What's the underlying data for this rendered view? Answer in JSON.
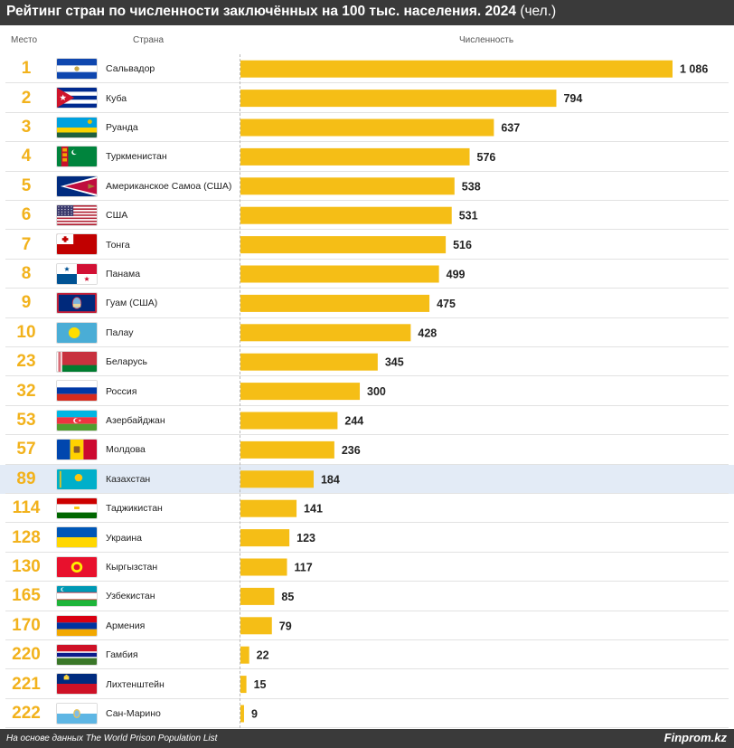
{
  "header": {
    "title": "Рейтинг стран по численности заключённых на 100 тыс. населения. 2024",
    "unit": "(чел.)"
  },
  "columns": {
    "place": "Место",
    "country": "Страна",
    "value": "Численность"
  },
  "colors": {
    "bar": "#f5be16",
    "place": "#f2b21c",
    "highlight": "#e3ebf6",
    "header_bg": "#3a3a3a"
  },
  "rows": [
    {
      "place": "1",
      "country": "Сальвадор",
      "flag": "salvador-flag"
    },
    {
      "place": "2",
      "country": "Куба",
      "flag": "cuba-flag"
    },
    {
      "place": "3",
      "country": "Руанда",
      "flag": "rwanda-flag"
    },
    {
      "place": "4",
      "country": "Туркменистан",
      "flag": "turkmenistan-flag"
    },
    {
      "place": "5",
      "country": "Американское Самоа (США)",
      "flag": "american-samoa-flag"
    },
    {
      "place": "6",
      "country": "США",
      "flag": "usa-flag"
    },
    {
      "place": "7",
      "country": "Тонга",
      "flag": "tonga-flag"
    },
    {
      "place": "8",
      "country": "Панама",
      "flag": "panama-flag"
    },
    {
      "place": "9",
      "country": "Гуам (США)",
      "flag": "guam-flag"
    },
    {
      "place": "10",
      "country": "Палау",
      "flag": "palau-flag"
    },
    {
      "place": "23",
      "country": "Беларусь",
      "flag": "belarus-flag"
    },
    {
      "place": "32",
      "country": "Россия",
      "flag": "russia-flag"
    },
    {
      "place": "53",
      "country": "Азербайджан",
      "flag": "azerbaijan-flag"
    },
    {
      "place": "57",
      "country": "Молдова",
      "flag": "moldova-flag"
    },
    {
      "place": "89",
      "country": "Казахстан",
      "flag": "kazakhstan-flag",
      "highlight": true
    },
    {
      "place": "114",
      "country": "Таджикистан",
      "flag": "tajikistan-flag"
    },
    {
      "place": "128",
      "country": "Украина",
      "flag": "ukraine-flag"
    },
    {
      "place": "130",
      "country": "Кыргызстан",
      "flag": "kyrgyzstan-flag"
    },
    {
      "place": "165",
      "country": "Узбекистан",
      "flag": "uzbekistan-flag"
    },
    {
      "place": "170",
      "country": "Армения",
      "flag": "armenia-flag"
    },
    {
      "place": "220",
      "country": "Гамбия",
      "flag": "gambia-flag"
    },
    {
      "place": "221",
      "country": "Лихтенштейн",
      "flag": "liechtenstein-flag"
    },
    {
      "place": "222",
      "country": "Сан-Марино",
      "flag": "san-marino-flag"
    }
  ],
  "chart_data": {
    "type": "bar",
    "orientation": "horizontal",
    "title": "Рейтинг стран по численности заключённых на 100 тыс. населения. 2024",
    "categories": [
      "Сальвадор",
      "Куба",
      "Руанда",
      "Туркменистан",
      "Американское Самоа (США)",
      "США",
      "Тонга",
      "Панама",
      "Гуам (США)",
      "Палау",
      "Беларусь",
      "Россия",
      "Азербайджан",
      "Молдова",
      "Казахстан",
      "Таджикистан",
      "Украина",
      "Кыргызстан",
      "Узбекистан",
      "Армения",
      "Гамбия",
      "Лихтенштейн",
      "Сан-Марино"
    ],
    "values": [
      1086,
      794,
      637,
      576,
      538,
      531,
      516,
      499,
      475,
      428,
      345,
      300,
      244,
      236,
      184,
      141,
      123,
      117,
      85,
      79,
      22,
      15,
      9
    ],
    "value_labels": [
      "1 086",
      "794",
      "637",
      "576",
      "538",
      "531",
      "516",
      "499",
      "475",
      "428",
      "345",
      "300",
      "244",
      "236",
      "184",
      "141",
      "123",
      "117",
      "85",
      "79",
      "22",
      "15",
      "9"
    ],
    "xlim": [
      0,
      1086
    ],
    "grid": false
  },
  "footer": {
    "source": "На основе данных The World Prison Population List",
    "brand": "Finprom.kz"
  }
}
